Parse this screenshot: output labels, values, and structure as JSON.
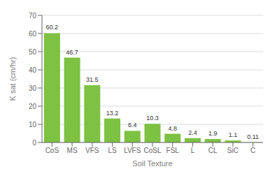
{
  "chart_data": {
    "type": "bar",
    "categories": [
      "CoS",
      "MS",
      "VFS",
      "LS",
      "LVFS",
      "CoSL",
      "FSL",
      "L",
      "CL",
      "SiC",
      "C"
    ],
    "values": [
      60.2,
      46.7,
      31.5,
      13.2,
      6.4,
      10.3,
      4.8,
      2.4,
      1.9,
      1.1,
      0.11
    ],
    "color": "#7dc242",
    "xlabel": "Soil Texture",
    "ylabel": "K sat (cm/hr)",
    "ylim": [
      0,
      70
    ],
    "yticks": [
      0,
      10,
      20,
      30,
      40,
      50,
      60,
      70
    ],
    "grid": true,
    "data_labels": true
  }
}
